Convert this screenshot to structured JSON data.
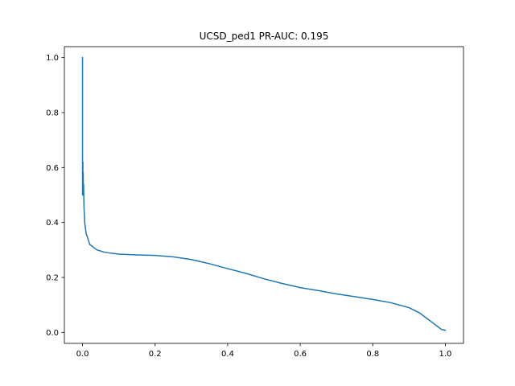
{
  "chart_data": {
    "type": "line",
    "title": "UCSD_ped1 PR-AUC: 0.195",
    "xlabel": "",
    "ylabel": "",
    "xlim": [
      -0.05,
      1.05
    ],
    "ylim": [
      -0.04,
      1.04
    ],
    "grid": false,
    "xticks": [
      0.0,
      0.2,
      0.4,
      0.6,
      0.8,
      1.0
    ],
    "xtick_labels": [
      "0.0",
      "0.2",
      "0.4",
      "0.6",
      "0.8",
      "1.0"
    ],
    "yticks": [
      0.0,
      0.2,
      0.4,
      0.6,
      0.8,
      1.0
    ],
    "ytick_labels": [
      "0.0",
      "0.2",
      "0.4",
      "0.6",
      "0.8",
      "1.0"
    ],
    "series": [
      {
        "color": "#1f77b4",
        "x": [
          0.0,
          0.0,
          0.0,
          0.001,
          0.001,
          0.002,
          0.002,
          0.003,
          0.004,
          0.005,
          0.006,
          0.008,
          0.01,
          0.015,
          0.02,
          0.03,
          0.04,
          0.06,
          0.08,
          0.1,
          0.15,
          0.2,
          0.25,
          0.3,
          0.35,
          0.4,
          0.45,
          0.5,
          0.55,
          0.6,
          0.65,
          0.7,
          0.75,
          0.8,
          0.85,
          0.9,
          0.93,
          0.95,
          0.97,
          0.98,
          0.99,
          1.0
        ],
        "y": [
          1.0,
          0.83,
          0.5,
          0.62,
          0.52,
          0.58,
          0.5,
          0.54,
          0.46,
          0.43,
          0.4,
          0.38,
          0.36,
          0.34,
          0.32,
          0.31,
          0.3,
          0.292,
          0.288,
          0.285,
          0.282,
          0.28,
          0.275,
          0.265,
          0.25,
          0.232,
          0.215,
          0.195,
          0.178,
          0.163,
          0.152,
          0.14,
          0.13,
          0.12,
          0.108,
          0.09,
          0.07,
          0.05,
          0.03,
          0.02,
          0.01,
          0.008
        ]
      }
    ]
  }
}
